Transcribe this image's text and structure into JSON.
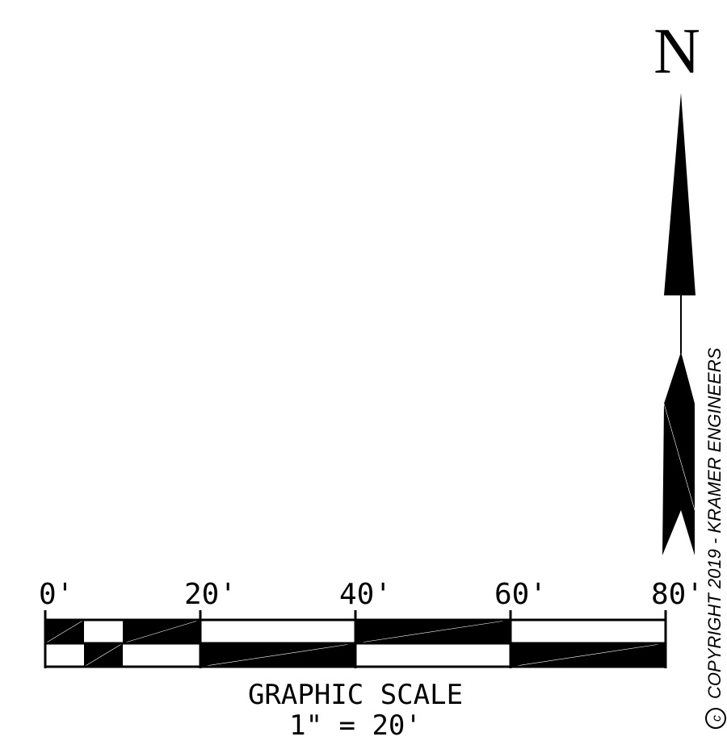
{
  "north_arrow": {
    "letter": "N"
  },
  "scale_bar": {
    "tick_labels": [
      "0'",
      "20'",
      "40'",
      "60'",
      "80'"
    ],
    "caption_line1": "GRAPHIC SCALE",
    "caption_line2": "1\" = 20'"
  },
  "copyright": {
    "symbol": "©",
    "text": "COPYRIGHT 2019 - KRAMER ENGINEERS"
  },
  "colors": {
    "ink": "#000000",
    "paper": "#ffffff"
  }
}
